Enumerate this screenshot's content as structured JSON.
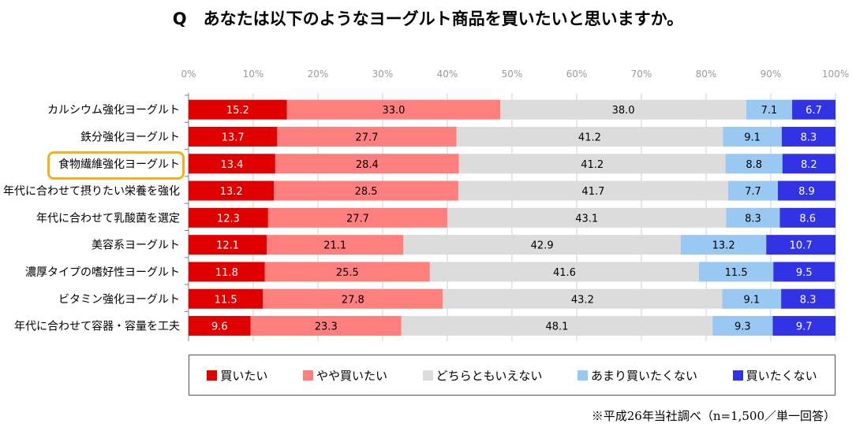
{
  "title": "Q　あなたは以下のようなヨーグルト商品を買いたいと思いますか。",
  "note": "※平成26年当社調べ（n=1,500／単一回答）",
  "highlighted_category": "食物繊維強化ヨーグルト",
  "colors": {
    "want": "#e00000",
    "somewhat_want": "#ff7f7f",
    "neither": "#dcdcdc",
    "not_really": "#99c8f2",
    "not_want": "#3333e6",
    "highlight_border": "#f2b21b"
  },
  "chart_data": {
    "type": "bar",
    "orientation": "horizontal",
    "stacked": true,
    "percent_axis": true,
    "xlim": [
      0,
      100
    ],
    "x_ticks": [
      "0%",
      "10%",
      "20%",
      "30%",
      "40%",
      "50%",
      "60%",
      "70%",
      "80%",
      "90%",
      "100%"
    ],
    "legend_position": "bottom",
    "grid": true,
    "categories": [
      "カルシウム強化ヨーグルト",
      "鉄分強化ヨーグルト",
      "食物繊維強化ヨーグルト",
      "年代に合わせて摂りたい栄養を強化",
      "年代に合わせて乳酸菌を選定",
      "美容系ヨーグルト",
      "濃厚タイプの嗜好性ヨーグルト",
      "ビタミン強化ヨーグルト",
      "年代に合わせて容器・容量を工夫"
    ],
    "series": [
      {
        "name": "買いたい",
        "values": [
          15.2,
          13.7,
          13.4,
          13.2,
          12.3,
          12.1,
          11.8,
          11.5,
          9.6
        ]
      },
      {
        "name": "やや買いたい",
        "values": [
          33.0,
          27.7,
          28.4,
          28.5,
          27.7,
          21.1,
          25.5,
          27.8,
          23.3
        ]
      },
      {
        "name": "どちらともいえない",
        "values": [
          38.0,
          41.2,
          41.2,
          41.7,
          43.1,
          42.9,
          41.6,
          43.2,
          48.1
        ]
      },
      {
        "name": "あまり買いたくない",
        "values": [
          7.1,
          9.1,
          8.8,
          7.7,
          8.3,
          13.2,
          11.5,
          9.1,
          9.3
        ]
      },
      {
        "name": "買いたくない",
        "values": [
          6.7,
          8.3,
          8.2,
          8.9,
          8.6,
          10.7,
          9.5,
          8.3,
          9.7
        ]
      }
    ]
  }
}
